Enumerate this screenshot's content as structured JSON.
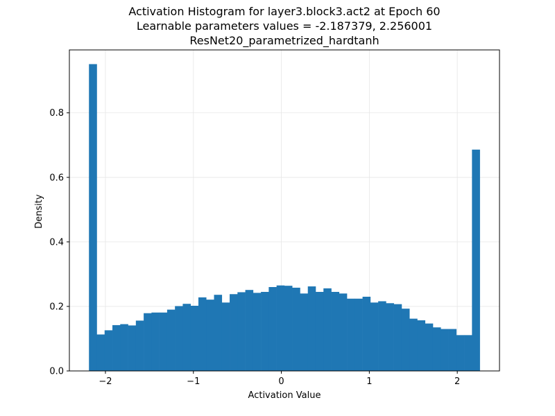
{
  "chart_data": {
    "type": "bar",
    "title_lines": [
      "Activation Histogram for layer3.block3.act2 at Epoch 60",
      "Learnable parameters values = -2.187379, 2.256001",
      "ResNet20_parametrized_hardtanh"
    ],
    "xlabel": "Activation Value",
    "ylabel": "Density",
    "xlim": [
      -2.41,
      2.48
    ],
    "ylim": [
      0.0,
      0.995
    ],
    "xticks": [
      -2,
      -1,
      0,
      1,
      2
    ],
    "xtick_labels": [
      "−2",
      "−1",
      "0",
      "1",
      "2"
    ],
    "yticks": [
      0.0,
      0.2,
      0.4,
      0.6,
      0.8
    ],
    "ytick_labels": [
      "0.0",
      "0.2",
      "0.4",
      "0.6",
      "0.8"
    ],
    "grid": true,
    "bar_color": "#1f77b4",
    "bins": {
      "x_min": -2.187379,
      "x_max": 2.256001,
      "count": 50
    },
    "density": [
      0.951,
      0.113,
      0.126,
      0.142,
      0.145,
      0.141,
      0.156,
      0.179,
      0.181,
      0.181,
      0.19,
      0.201,
      0.208,
      0.202,
      0.228,
      0.221,
      0.236,
      0.212,
      0.238,
      0.244,
      0.251,
      0.242,
      0.245,
      0.26,
      0.265,
      0.264,
      0.258,
      0.24,
      0.262,
      0.245,
      0.256,
      0.245,
      0.24,
      0.224,
      0.224,
      0.23,
      0.212,
      0.216,
      0.21,
      0.207,
      0.193,
      0.162,
      0.157,
      0.147,
      0.135,
      0.13,
      0.13,
      0.111,
      0.111,
      0.686
    ]
  }
}
